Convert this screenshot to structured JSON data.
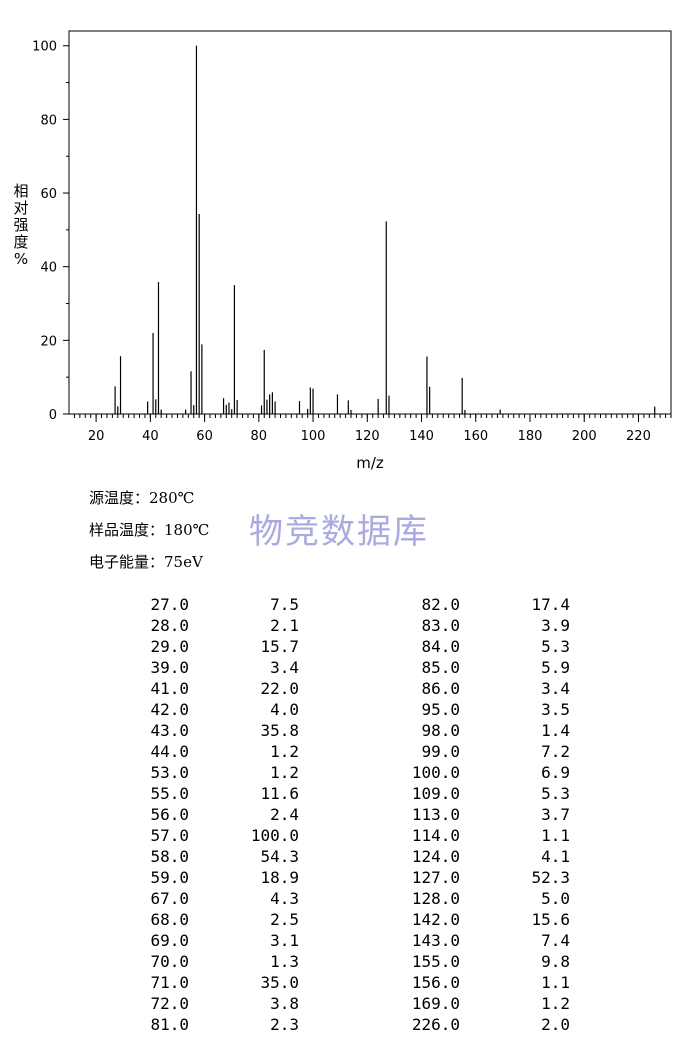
{
  "chart_data": {
    "type": "bar",
    "xlabel": "m/z",
    "ylabel": "相\n对\n强\n度\n%",
    "xlim": [
      10,
      232
    ],
    "ylim": [
      0,
      104
    ],
    "xticks": [
      20,
      40,
      60,
      80,
      100,
      120,
      140,
      160,
      180,
      200,
      220
    ],
    "yticks": [
      0,
      20,
      40,
      60,
      80,
      100
    ],
    "grid": false,
    "series": [
      {
        "x": [
          27,
          28,
          29,
          39,
          41,
          42,
          43,
          44,
          53,
          55,
          56,
          57,
          58,
          59,
          67,
          68,
          69,
          70,
          71,
          72,
          81,
          82,
          83,
          84,
          85,
          86,
          95,
          98,
          99,
          100,
          109,
          113,
          114,
          124,
          127,
          128,
          142,
          143,
          155,
          156,
          169,
          226
        ],
        "values": [
          7.5,
          2.1,
          15.7,
          3.4,
          22.0,
          4.0,
          35.8,
          1.2,
          1.2,
          11.6,
          2.4,
          100.0,
          54.3,
          18.9,
          4.3,
          2.5,
          3.1,
          1.3,
          35.0,
          3.8,
          2.3,
          17.4,
          3.9,
          5.3,
          5.9,
          3.4,
          3.5,
          1.4,
          7.2,
          6.9,
          5.3,
          3.7,
          1.1,
          4.1,
          52.3,
          5.0,
          15.6,
          7.4,
          9.8,
          1.1,
          1.2,
          2.0
        ]
      }
    ]
  },
  "conditions": {
    "source_temp": "源温度：280℃",
    "sample_temp": "样品温度：180℃",
    "electron_energy": "电子能量：75eV"
  },
  "watermark": "物竞数据库",
  "peak_table": [
    [
      "27.0",
      "7.5",
      "82.0",
      "17.4"
    ],
    [
      "28.0",
      "2.1",
      "83.0",
      "3.9"
    ],
    [
      "29.0",
      "15.7",
      "84.0",
      "5.3"
    ],
    [
      "39.0",
      "3.4",
      "85.0",
      "5.9"
    ],
    [
      "41.0",
      "22.0",
      "86.0",
      "3.4"
    ],
    [
      "42.0",
      "4.0",
      "95.0",
      "3.5"
    ],
    [
      "43.0",
      "35.8",
      "98.0",
      "1.4"
    ],
    [
      "44.0",
      "1.2",
      "99.0",
      "7.2"
    ],
    [
      "53.0",
      "1.2",
      "100.0",
      "6.9"
    ],
    [
      "55.0",
      "11.6",
      "109.0",
      "5.3"
    ],
    [
      "56.0",
      "2.4",
      "113.0",
      "3.7"
    ],
    [
      "57.0",
      "100.0",
      "114.0",
      "1.1"
    ],
    [
      "58.0",
      "54.3",
      "124.0",
      "4.1"
    ],
    [
      "59.0",
      "18.9",
      "127.0",
      "52.3"
    ],
    [
      "67.0",
      "4.3",
      "128.0",
      "5.0"
    ],
    [
      "68.0",
      "2.5",
      "142.0",
      "15.6"
    ],
    [
      "69.0",
      "3.1",
      "143.0",
      "7.4"
    ],
    [
      "70.0",
      "1.3",
      "155.0",
      "9.8"
    ],
    [
      "71.0",
      "35.0",
      "156.0",
      "1.1"
    ],
    [
      "72.0",
      "3.8",
      "169.0",
      "1.2"
    ],
    [
      "81.0",
      "2.3",
      "226.0",
      "2.0"
    ]
  ]
}
